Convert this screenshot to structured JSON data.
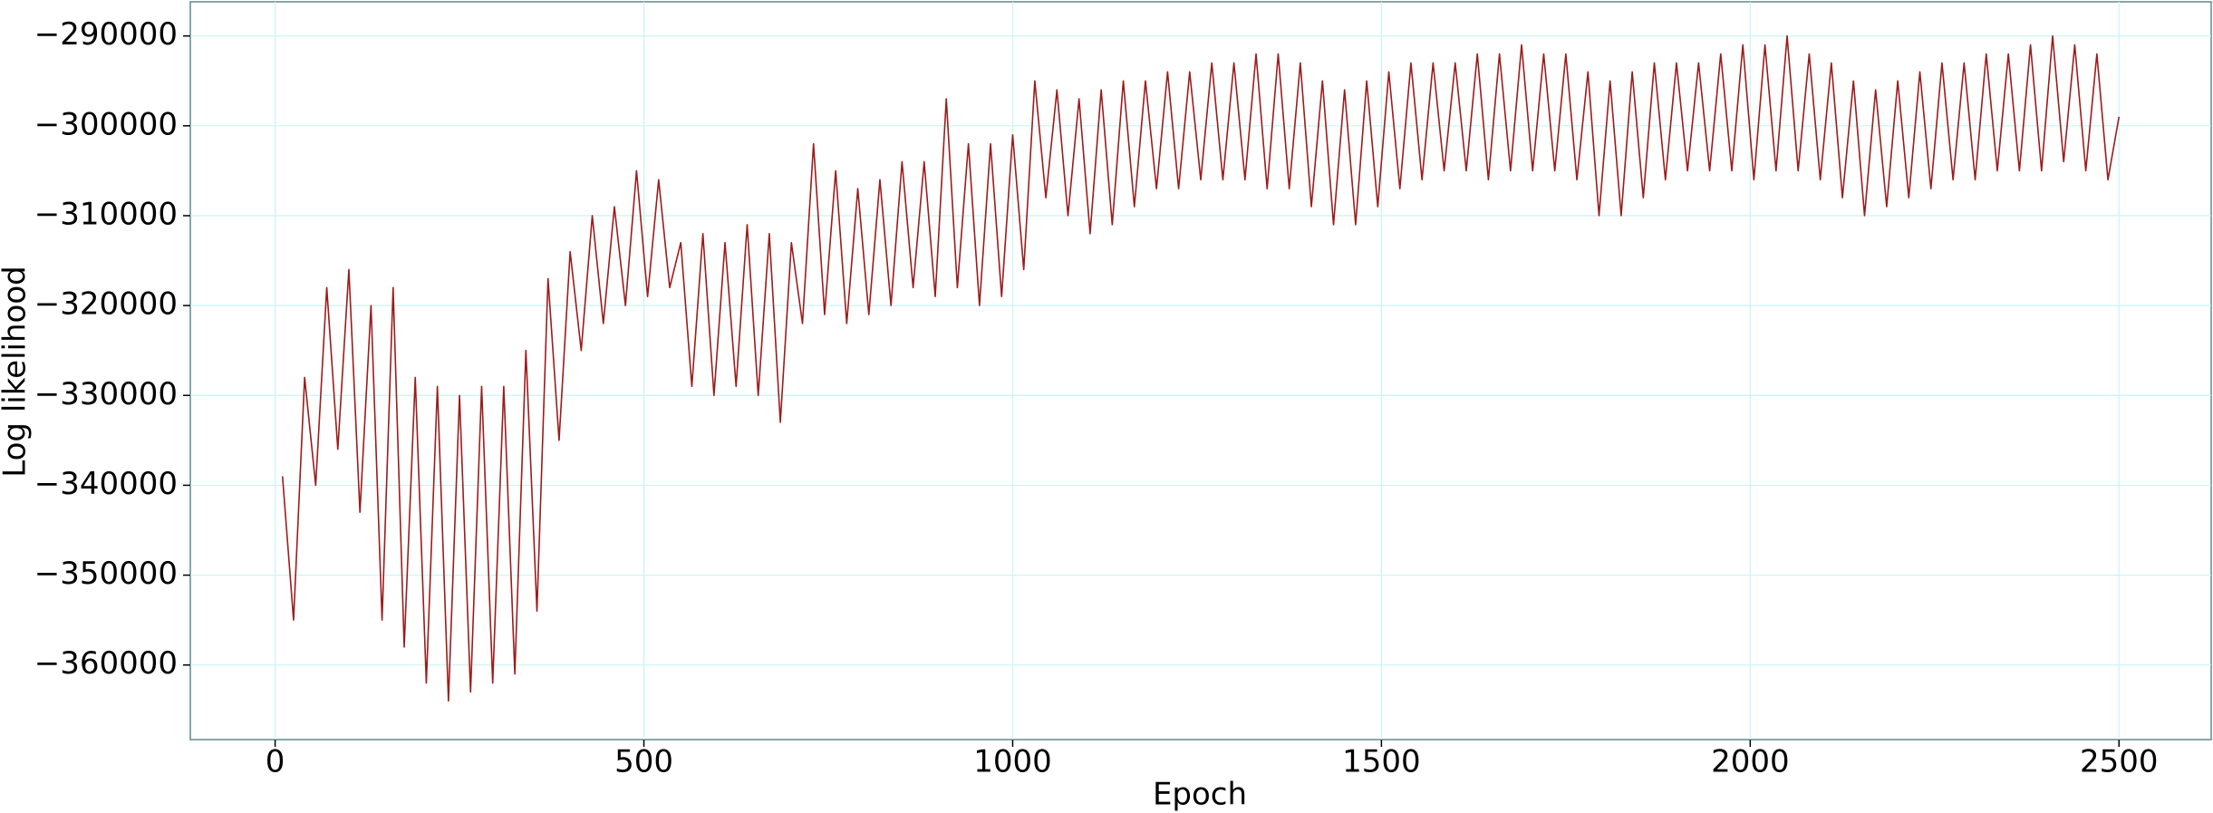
{
  "chart_data": {
    "type": "line",
    "x_label": "Epoch",
    "y_label": "Log likelihood",
    "color": "#9b1c1c",
    "grid": true,
    "xlim": [
      -115,
      2625
    ],
    "ylim": [
      -368300,
      -286200
    ],
    "xticks": [
      0,
      500,
      1000,
      1500,
      2000,
      2500
    ],
    "yticks": [
      {
        "value": -290000,
        "label": "−290000"
      },
      {
        "value": -300000,
        "label": "−300000"
      },
      {
        "value": -310000,
        "label": "−310000"
      },
      {
        "value": -320000,
        "label": "−320000"
      },
      {
        "value": -330000,
        "label": "−330000"
      },
      {
        "value": -340000,
        "label": "−340000"
      },
      {
        "value": -350000,
        "label": "−350000"
      },
      {
        "value": -360000,
        "label": "−360000"
      }
    ],
    "x": [
      10,
      25,
      40,
      55,
      70,
      85,
      100,
      115,
      130,
      145,
      160,
      175,
      190,
      205,
      220,
      235,
      250,
      265,
      280,
      295,
      310,
      325,
      340,
      355,
      370,
      385,
      400,
      415,
      430,
      445,
      460,
      475,
      490,
      505,
      520,
      535,
      550,
      565,
      580,
      595,
      610,
      625,
      640,
      655,
      670,
      685,
      700,
      715,
      730,
      745,
      760,
      775,
      790,
      805,
      820,
      835,
      850,
      865,
      880,
      895,
      910,
      925,
      940,
      955,
      970,
      985,
      1000,
      1015,
      1030,
      1045,
      1060,
      1075,
      1090,
      1105,
      1120,
      1135,
      1150,
      1165,
      1180,
      1195,
      1210,
      1225,
      1240,
      1255,
      1270,
      1285,
      1300,
      1315,
      1330,
      1345,
      1360,
      1375,
      1390,
      1405,
      1420,
      1435,
      1450,
      1465,
      1480,
      1495,
      1510,
      1525,
      1540,
      1555,
      1570,
      1585,
      1600,
      1615,
      1630,
      1645,
      1660,
      1675,
      1690,
      1705,
      1720,
      1735,
      1750,
      1765,
      1780,
      1795,
      1810,
      1825,
      1840,
      1855,
      1870,
      1885,
      1900,
      1915,
      1930,
      1945,
      1960,
      1975,
      1990,
      2005,
      2020,
      2035,
      2050,
      2065,
      2080,
      2095,
      2110,
      2125,
      2140,
      2155,
      2170,
      2185,
      2200,
      2215,
      2230,
      2245,
      2260,
      2275,
      2290,
      2305,
      2320,
      2335,
      2350,
      2365,
      2380,
      2395,
      2410,
      2425,
      2440,
      2455,
      2470,
      2485,
      2500
    ],
    "values": [
      -339000,
      -355000,
      -328000,
      -340000,
      -318000,
      -336000,
      -316000,
      -343000,
      -320000,
      -355000,
      -318000,
      -358000,
      -328000,
      -362000,
      -329000,
      -364000,
      -330000,
      -363000,
      -329000,
      -362000,
      -329000,
      -361000,
      -325000,
      -354000,
      -317000,
      -335000,
      -314000,
      -325000,
      -310000,
      -322000,
      -309000,
      -320000,
      -305000,
      -319000,
      -306000,
      -318000,
      -313000,
      -329000,
      -312000,
      -330000,
      -313000,
      -329000,
      -311000,
      -330000,
      -312000,
      -333000,
      -313000,
      -322000,
      -302000,
      -321000,
      -305000,
      -322000,
      -307000,
      -321000,
      -306000,
      -320000,
      -304000,
      -318000,
      -304000,
      -319000,
      -297000,
      -318000,
      -302000,
      -320000,
      -302000,
      -319000,
      -301000,
      -316000,
      -295000,
      -308000,
      -296000,
      -310000,
      -297000,
      -312000,
      -296000,
      -311000,
      -295000,
      -309000,
      -295000,
      -307000,
      -294000,
      -307000,
      -294000,
      -306000,
      -293000,
      -306000,
      -293000,
      -306000,
      -292000,
      -307000,
      -292000,
      -307000,
      -293000,
      -309000,
      -295000,
      -311000,
      -296000,
      -311000,
      -295000,
      -309000,
      -294000,
      -307000,
      -293000,
      -306000,
      -293000,
      -305000,
      -293000,
      -305000,
      -292000,
      -306000,
      -292000,
      -305000,
      -291000,
      -305000,
      -292000,
      -305000,
      -292000,
      -306000,
      -294000,
      -310000,
      -295000,
      -310000,
      -294000,
      -308000,
      -293000,
      -306000,
      -293000,
      -305000,
      -293000,
      -305000,
      -292000,
      -305000,
      -291000,
      -306000,
      -291000,
      -305000,
      -290000,
      -305000,
      -292000,
      -306000,
      -293000,
      -308000,
      -295000,
      -310000,
      -296000,
      -309000,
      -295000,
      -308000,
      -294000,
      -307000,
      -293000,
      -306000,
      -293000,
      -306000,
      -292000,
      -305000,
      -292000,
      -305000,
      -291000,
      -305000,
      -290000,
      -304000,
      -291000,
      -305000,
      -292000,
      -306000,
      -299000
    ]
  }
}
